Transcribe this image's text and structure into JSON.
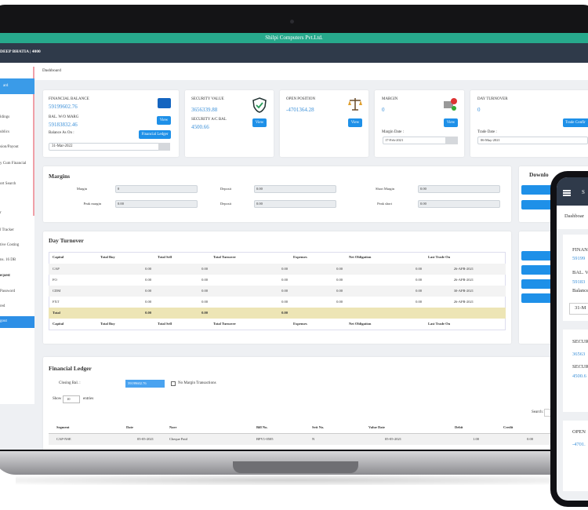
{
  "title_bar": "Shilpi Computers Pvt.Ltd.",
  "navbar": {
    "user": "DEEP BHATIA | 4000"
  },
  "breadcrumb": "Dashboard",
  "sidebar": [
    "ard",
    "ldings",
    "ublics",
    "sion/Payout",
    "y Cum Financial",
    "ort Search",
    "r",
    "l Tracker",
    "tive Costing",
    "ns. 16 DB",
    "equest",
    "Password",
    "red",
    "gout"
  ],
  "cards": {
    "financial": {
      "label": "FINANCIAL BALANCE",
      "value": "59199602.76",
      "sub_label": "BAL. W/O MARG",
      "sub_value": "59183832.46",
      "date_label": "Balance As On :",
      "date": "31-Mar-2022",
      "buttons": [
        "View",
        "Financial Ledger"
      ]
    },
    "security": {
      "label": "SECURITY VALUE",
      "value": "3656339.88",
      "sub_label": "SECURITY A/C BAL",
      "sub_value": "4500.66",
      "button": "View"
    },
    "open_position": {
      "label": "OPEN POSITION",
      "value": "-4701364.28",
      "button": "View"
    },
    "margin": {
      "label": "MARGIN",
      "value": "0",
      "date_label": "Margin Date :",
      "date": "17-Feb-2021",
      "button": "View"
    },
    "day_turnover": {
      "label": "DAY TURNOVER",
      "value": "0",
      "date_label": "Trade Date :",
      "date": "06-May-2021",
      "button": "Trade Confir"
    }
  },
  "margins": {
    "title": "Margins",
    "fields": [
      {
        "label": "Margin",
        "value": "0"
      },
      {
        "label": "Deposit",
        "value": "0.00"
      },
      {
        "label": "Short Margin",
        "value": "0.00"
      },
      {
        "label": "Peak margin",
        "value": "0.00"
      },
      {
        "label": "Deposit",
        "value": "0.00"
      },
      {
        "label": "Peak short",
        "value": "0.00"
      }
    ]
  },
  "downloads": {
    "title": "Downlo"
  },
  "day_turnover": {
    "title": "Day Turnover",
    "columns": [
      "Capital",
      "Total Buy",
      "Total Sell",
      "Total Turnover",
      "Expenses",
      "Net Obligation",
      "Last Trade On"
    ],
    "rows": [
      [
        "CAP",
        "0.00",
        "0.00",
        "0.00",
        "0.00",
        "0.00",
        "26-APR-2021"
      ],
      [
        "FO",
        "0.00",
        "0.00",
        "0.00",
        "0.00",
        "0.00",
        "26-APR-2021"
      ],
      [
        "CDM",
        "0.00",
        "0.00",
        "0.00",
        "0.00",
        "0.00",
        "30-APR-2021"
      ],
      [
        "FXT",
        "0.00",
        "0.00",
        "0.00",
        "0.00",
        "0.00",
        "26-APR-2021"
      ]
    ],
    "total": [
      "Total",
      "0.00",
      "0.00",
      "0.00"
    ]
  },
  "ledger": {
    "title": "Financial Ledger",
    "closing_label": "Closing Bal. :",
    "closing_value": "59199602.76",
    "checkbox": "No Margin Transactions",
    "show": "Show",
    "entries_count": "10",
    "entries": "entries",
    "search": "Search:",
    "columns": [
      "Segment",
      "Date",
      "Narr",
      "Bill No.",
      "Sett No.",
      "Value Date",
      "Debit",
      "Credit"
    ],
    "rows": [
      [
        "CAP-NSE",
        "05-05-2021",
        "Cheque Paid",
        "BPV1-0505",
        "N",
        "05-05-2021",
        "1.00",
        "0.00"
      ]
    ]
  },
  "phone": {
    "header": "S",
    "breadcrumb": "Dashboar",
    "card1": [
      "FINAN",
      "59199",
      "BAL. V",
      "59183",
      "Balance",
      "31-M"
    ],
    "card2": [
      "SECUR",
      "36563",
      "SECUR",
      "4500.6"
    ],
    "card3": [
      "OPEN",
      "-4701."
    ]
  }
}
